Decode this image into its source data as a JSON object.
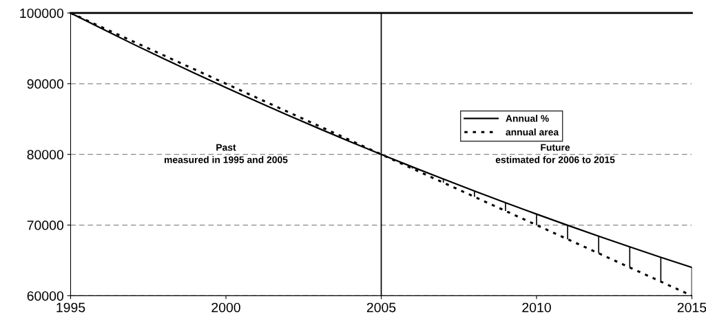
{
  "chart_data": {
    "type": "line",
    "x": [
      1995,
      1996,
      1997,
      1998,
      1999,
      2000,
      2001,
      2002,
      2003,
      2004,
      2005,
      2006,
      2007,
      2008,
      2009,
      2010,
      2011,
      2012,
      2013,
      2014,
      2015
    ],
    "series": [
      {
        "name": "Annual %",
        "color": "#000000",
        "line_style": "solid",
        "values": [
          100000,
          97800,
          95630,
          93530,
          91460,
          89440,
          87470,
          85540,
          83650,
          81800,
          80000,
          78230,
          76510,
          74820,
          73170,
          71550,
          69970,
          68430,
          66920,
          65440,
          64000
        ],
        "errors": [
          null,
          null,
          null,
          null,
          null,
          null,
          null,
          null,
          null,
          null,
          null,
          [
            78000,
            78230
          ],
          [
            76000,
            76510
          ],
          [
            74000,
            74820
          ],
          [
            72000,
            73170
          ],
          [
            70000,
            71550
          ],
          [
            68000,
            69970
          ],
          [
            66000,
            68430
          ],
          [
            64000,
            66920
          ],
          [
            62000,
            65440
          ],
          [
            60000,
            64000
          ]
        ]
      },
      {
        "name": "annual area",
        "color": "#000000",
        "line_style": "dotted",
        "values": [
          100000,
          98000,
          96000,
          94000,
          92000,
          90000,
          88000,
          86000,
          84000,
          82000,
          80000,
          78000,
          76000,
          74000,
          72000,
          70000,
          68000,
          66000,
          64000,
          62000,
          60000
        ]
      }
    ],
    "xlim": [
      1995,
      2015
    ],
    "xticks": [
      1995,
      2000,
      2005,
      2010,
      2015
    ],
    "ylim": [
      60000,
      100000
    ],
    "yticks": [
      60000,
      70000,
      80000,
      90000,
      100000
    ],
    "grid": "y",
    "legend": "right",
    "ref_lines": [
      {
        "axis": "x",
        "value": 2005,
        "color": "#000000"
      }
    ],
    "annotations": [
      "Past\nmeasured in 1995 and 2005",
      "Future\nestimated for 2006 to 2015"
    ]
  }
}
